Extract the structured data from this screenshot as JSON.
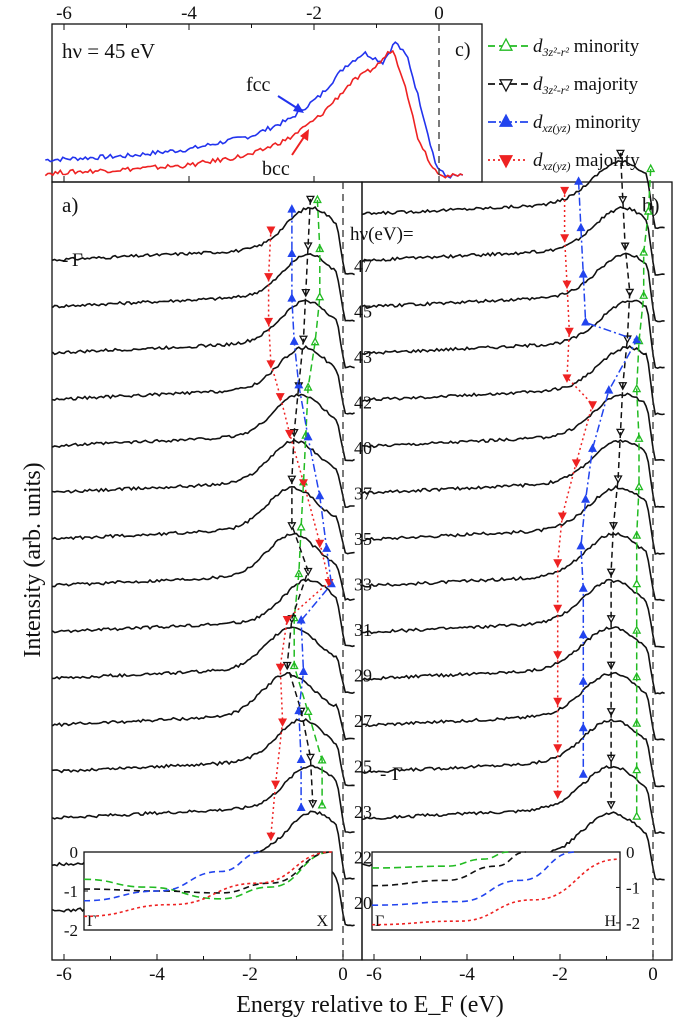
{
  "chart_data": [
    {
      "panel": "a",
      "type": "line",
      "panel_label": "a)",
      "gamma_label": "Γ",
      "xlabel": "Energy relative to E_F (eV)",
      "ylabel": "Intensity (arb. units)",
      "xlim": [
        -6.3,
        0.3
      ],
      "x_ticks": [
        "-6",
        "-4",
        "-2",
        "0"
      ],
      "series": [
        {
          "hv": 47,
          "peaks": {
            "d3z2_min": -0.55,
            "d3z2_maj": -0.7,
            "dxz_min": -1.1,
            "dxz_maj": -1.55
          }
        },
        {
          "hv": 45,
          "peaks": {
            "d3z2_min": -0.5,
            "d3z2_maj": -0.75,
            "dxz_min": -1.1,
            "dxz_maj": -1.6
          }
        },
        {
          "hv": 43,
          "peaks": {
            "d3z2_min": -0.5,
            "d3z2_maj": -0.8,
            "dxz_min": -1.1,
            "dxz_maj": -1.6
          }
        },
        {
          "hv": 42,
          "peaks": {
            "d3z2_min": -0.6,
            "d3z2_maj": -0.85,
            "dxz_min": -1.05,
            "dxz_maj": -1.55
          }
        },
        {
          "hv": 40,
          "peaks": {
            "d3z2_min": -0.75,
            "d3z2_maj": -0.95,
            "dxz_min": -0.95,
            "dxz_maj": -1.35
          }
        },
        {
          "hv": 37,
          "peaks": {
            "d3z2_min": -0.8,
            "d3z2_maj": -1.05,
            "dxz_min": -0.75,
            "dxz_maj": -1.15
          }
        },
        {
          "hv": 35,
          "peaks": {
            "d3z2_min": -0.85,
            "d3z2_maj": -1.1,
            "dxz_min": -0.5,
            "dxz_maj": -0.85
          }
        },
        {
          "hv": 33,
          "peaks": {
            "d3z2_min": -0.9,
            "d3z2_maj": -1.1,
            "dxz_min": -0.35,
            "dxz_maj": -0.5
          }
        },
        {
          "hv": 31,
          "peaks": {
            "d3z2_min": -0.95,
            "d3z2_maj": -0.75,
            "dxz_min": -0.25,
            "dxz_maj": -0.3
          }
        },
        {
          "hv": 29,
          "peaks": {
            "d3z2_min": -1.05,
            "d3z2_maj": -1.1,
            "dxz_min": -0.9,
            "dxz_maj": -1.2
          }
        },
        {
          "hv": 27,
          "peaks": {
            "d3z2_min": -1.05,
            "d3z2_maj": -1.2,
            "dxz_min": -0.85,
            "dxz_maj": -1.35
          }
        },
        {
          "hv": 25,
          "peaks": {
            "d3z2_min": -0.75,
            "d3z2_maj": -0.9,
            "dxz_min": -0.95,
            "dxz_maj": -1.3
          }
        },
        {
          "hv": 23,
          "peaks": {
            "d3z2_min": -0.45,
            "d3z2_maj": -0.7,
            "dxz_min": -0.9,
            "dxz_maj": -1.45
          }
        },
        {
          "hv": 22,
          "peaks": {
            "d3z2_min": -0.45,
            "d3z2_maj": -0.65,
            "dxz_min": -0.9,
            "dxz_maj": -1.55
          }
        },
        {
          "hv": 20,
          "peaks": {}
        }
      ],
      "inset": {
        "ylim": [
          -2,
          0
        ],
        "y_ticks": [
          "0",
          "-1",
          "-2"
        ],
        "x_labels": [
          "Γ",
          "X"
        ],
        "bands": [
          {
            "color": "#22bb22",
            "points": [
              [
                0,
                -0.7
              ],
              [
                0.25,
                -0.9
              ],
              [
                0.55,
                -1.2
              ],
              [
                0.75,
                -0.9
              ],
              [
                1,
                0
              ]
            ]
          },
          {
            "color": "#111111",
            "points": [
              [
                0,
                -0.95
              ],
              [
                0.3,
                -1.0
              ],
              [
                0.55,
                -1.05
              ],
              [
                0.75,
                -0.8
              ],
              [
                1,
                0
              ]
            ]
          },
          {
            "color": "#2244ee",
            "points": [
              [
                0,
                -1.25
              ],
              [
                0.3,
                -1.0
              ],
              [
                0.55,
                -0.5
              ],
              [
                0.72,
                0
              ]
            ]
          },
          {
            "color": "#ee2222",
            "points": [
              [
                0,
                -1.65
              ],
              [
                0.35,
                -1.35
              ],
              [
                0.7,
                -0.8
              ],
              [
                1,
                0
              ]
            ]
          }
        ]
      }
    },
    {
      "panel": "b",
      "type": "line",
      "panel_label": "b)",
      "gamma_label": "Γ",
      "hv_header": "hν(eV)=",
      "xlim": [
        -6.3,
        0.3
      ],
      "x_ticks": [
        "-6",
        "-4",
        "-2",
        "0"
      ],
      "series": [
        {
          "hv": 47,
          "peaks": {
            "d3z2_min": -0.05,
            "d3z2_maj": -0.7,
            "dxz_min": -1.6,
            "dxz_maj": -1.9
          }
        },
        {
          "hv": 45,
          "peaks": {
            "d3z2_min": -0.1,
            "d3z2_maj": -0.65,
            "dxz_min": -1.55,
            "dxz_maj": -1.9
          }
        },
        {
          "hv": 43,
          "peaks": {
            "d3z2_min": -0.2,
            "d3z2_maj": -0.6,
            "dxz_min": -1.5,
            "dxz_maj": -1.85
          }
        },
        {
          "hv": 42,
          "peaks": {
            "d3z2_min": -0.2,
            "d3z2_maj": -0.5,
            "dxz_min": -1.45,
            "dxz_maj": -1.8
          }
        },
        {
          "hv": 40,
          "peaks": {
            "d3z2_min": -0.3,
            "d3z2_maj": -0.55,
            "dxz_min": -0.35,
            "dxz_maj": -1.85
          }
        },
        {
          "hv": 37,
          "peaks": {
            "d3z2_min": -0.35,
            "d3z2_maj": -0.65,
            "dxz_min": -0.95,
            "dxz_maj": -1.3
          }
        },
        {
          "hv": 35,
          "peaks": {
            "d3z2_min": -0.3,
            "d3z2_maj": -0.7,
            "dxz_min": -1.3,
            "dxz_maj": -1.65
          }
        },
        {
          "hv": 33,
          "peaks": {
            "d3z2_min": -0.3,
            "d3z2_maj": -0.75,
            "dxz_min": -1.45,
            "dxz_maj": -1.95
          }
        },
        {
          "hv": 31,
          "peaks": {
            "d3z2_min": -0.35,
            "d3z2_maj": -0.85,
            "dxz_min": -1.55,
            "dxz_maj": -2.05
          }
        },
        {
          "hv": 29,
          "peaks": {
            "d3z2_min": -0.35,
            "d3z2_maj": -0.9,
            "dxz_min": -1.5,
            "dxz_maj": -2.05
          }
        },
        {
          "hv": 27,
          "peaks": {
            "d3z2_min": -0.35,
            "d3z2_maj": -0.9,
            "dxz_min": -1.5,
            "dxz_maj": -2.05
          }
        },
        {
          "hv": 25,
          "peaks": {
            "d3z2_min": -0.35,
            "d3z2_maj": -0.9,
            "dxz_min": -1.5,
            "dxz_maj": -2.05
          }
        },
        {
          "hv": 23,
          "peaks": {
            "d3z2_min": -0.35,
            "d3z2_maj": -0.9,
            "dxz_min": -1.5,
            "dxz_maj": -2.05
          }
        },
        {
          "hv": 22,
          "peaks": {
            "d3z2_min": -0.35,
            "d3z2_maj": -0.9,
            "dxz_min": -1.5,
            "dxz_maj": -2.05
          }
        },
        {
          "hv": 20,
          "peaks": {
            "d3z2_min": -0.35,
            "d3z2_maj": -0.9
          }
        }
      ],
      "inset": {
        "ylim": [
          -2.2,
          0
        ],
        "y_ticks": [
          "0",
          "-1",
          "-2"
        ],
        "x_labels": [
          "Γ",
          "H"
        ],
        "bands": [
          {
            "color": "#22bb22",
            "points": [
              [
                0,
                -0.45
              ],
              [
                0.3,
                -0.4
              ],
              [
                0.45,
                -0.2
              ],
              [
                0.55,
                0
              ]
            ]
          },
          {
            "color": "#111111",
            "points": [
              [
                0,
                -0.95
              ],
              [
                0.3,
                -0.8
              ],
              [
                0.5,
                -0.4
              ],
              [
                0.62,
                0
              ]
            ]
          },
          {
            "color": "#2244ee",
            "points": [
              [
                0,
                -1.5
              ],
              [
                0.35,
                -1.4
              ],
              [
                0.6,
                -0.8
              ],
              [
                0.82,
                0
              ]
            ]
          },
          {
            "color": "#ee2222",
            "points": [
              [
                0,
                -2.05
              ],
              [
                0.35,
                -1.95
              ],
              [
                0.65,
                -1.35
              ],
              [
                1,
                -0.2
              ]
            ]
          }
        ]
      }
    },
    {
      "panel": "c",
      "type": "line",
      "panel_label": "c)",
      "photon_energy": "hν = 45 eV",
      "xlim": [
        -6.3,
        0.7
      ],
      "x_ticks": [
        "-6",
        "-4",
        "-2",
        "0"
      ],
      "series": [
        {
          "name": "fcc",
          "color": "#2233ee",
          "points": [
            [
              -6.3,
              0.12
            ],
            [
              -5,
              0.15
            ],
            [
              -4,
              0.2
            ],
            [
              -3,
              0.3
            ],
            [
              -2.4,
              0.42
            ],
            [
              -1.9,
              0.6
            ],
            [
              -1.5,
              0.82
            ],
            [
              -1.2,
              0.92
            ],
            [
              -0.9,
              0.85
            ],
            [
              -0.7,
              1.0
            ],
            [
              -0.5,
              0.88
            ],
            [
              -0.25,
              0.45
            ],
            [
              -0.05,
              0.08
            ],
            [
              0.1,
              0.0
            ],
            [
              0.4,
              0.0
            ]
          ]
        },
        {
          "name": "bcc",
          "color": "#ee2222",
          "points": [
            [
              -6.3,
              0.02
            ],
            [
              -5,
              0.05
            ],
            [
              -4,
              0.08
            ],
            [
              -3,
              0.16
            ],
            [
              -2.4,
              0.28
            ],
            [
              -1.9,
              0.45
            ],
            [
              -1.4,
              0.7
            ],
            [
              -1.0,
              0.82
            ],
            [
              -0.75,
              0.95
            ],
            [
              -0.55,
              0.7
            ],
            [
              -0.35,
              0.3
            ],
            [
              -0.1,
              0.06
            ],
            [
              0.1,
              0.0
            ],
            [
              0.4,
              0.0
            ]
          ]
        }
      ]
    }
  ],
  "legend": [
    {
      "symbol": "open-up",
      "color": "#22bb22",
      "style": "dashed",
      "label_main": "d",
      "label_sub": "3z²-r²",
      "label_tail": "minority"
    },
    {
      "symbol": "open-down",
      "color": "#111111",
      "style": "dashed",
      "label_main": "d",
      "label_sub": "3z²-r²",
      "label_tail": "majority"
    },
    {
      "symbol": "filled-up",
      "color": "#2244ee",
      "style": "dashdot",
      "label_main": "d",
      "label_sub": "xz(yz)",
      "label_tail": "minority"
    },
    {
      "symbol": "filled-down",
      "color": "#ee2222",
      "style": "dotted",
      "label_main": "d",
      "label_sub": "xz(yz)",
      "label_tail": "majority"
    }
  ],
  "colors": {
    "green": "#22bb22",
    "black": "#111111",
    "blue": "#2244ee",
    "red": "#ee2222"
  }
}
